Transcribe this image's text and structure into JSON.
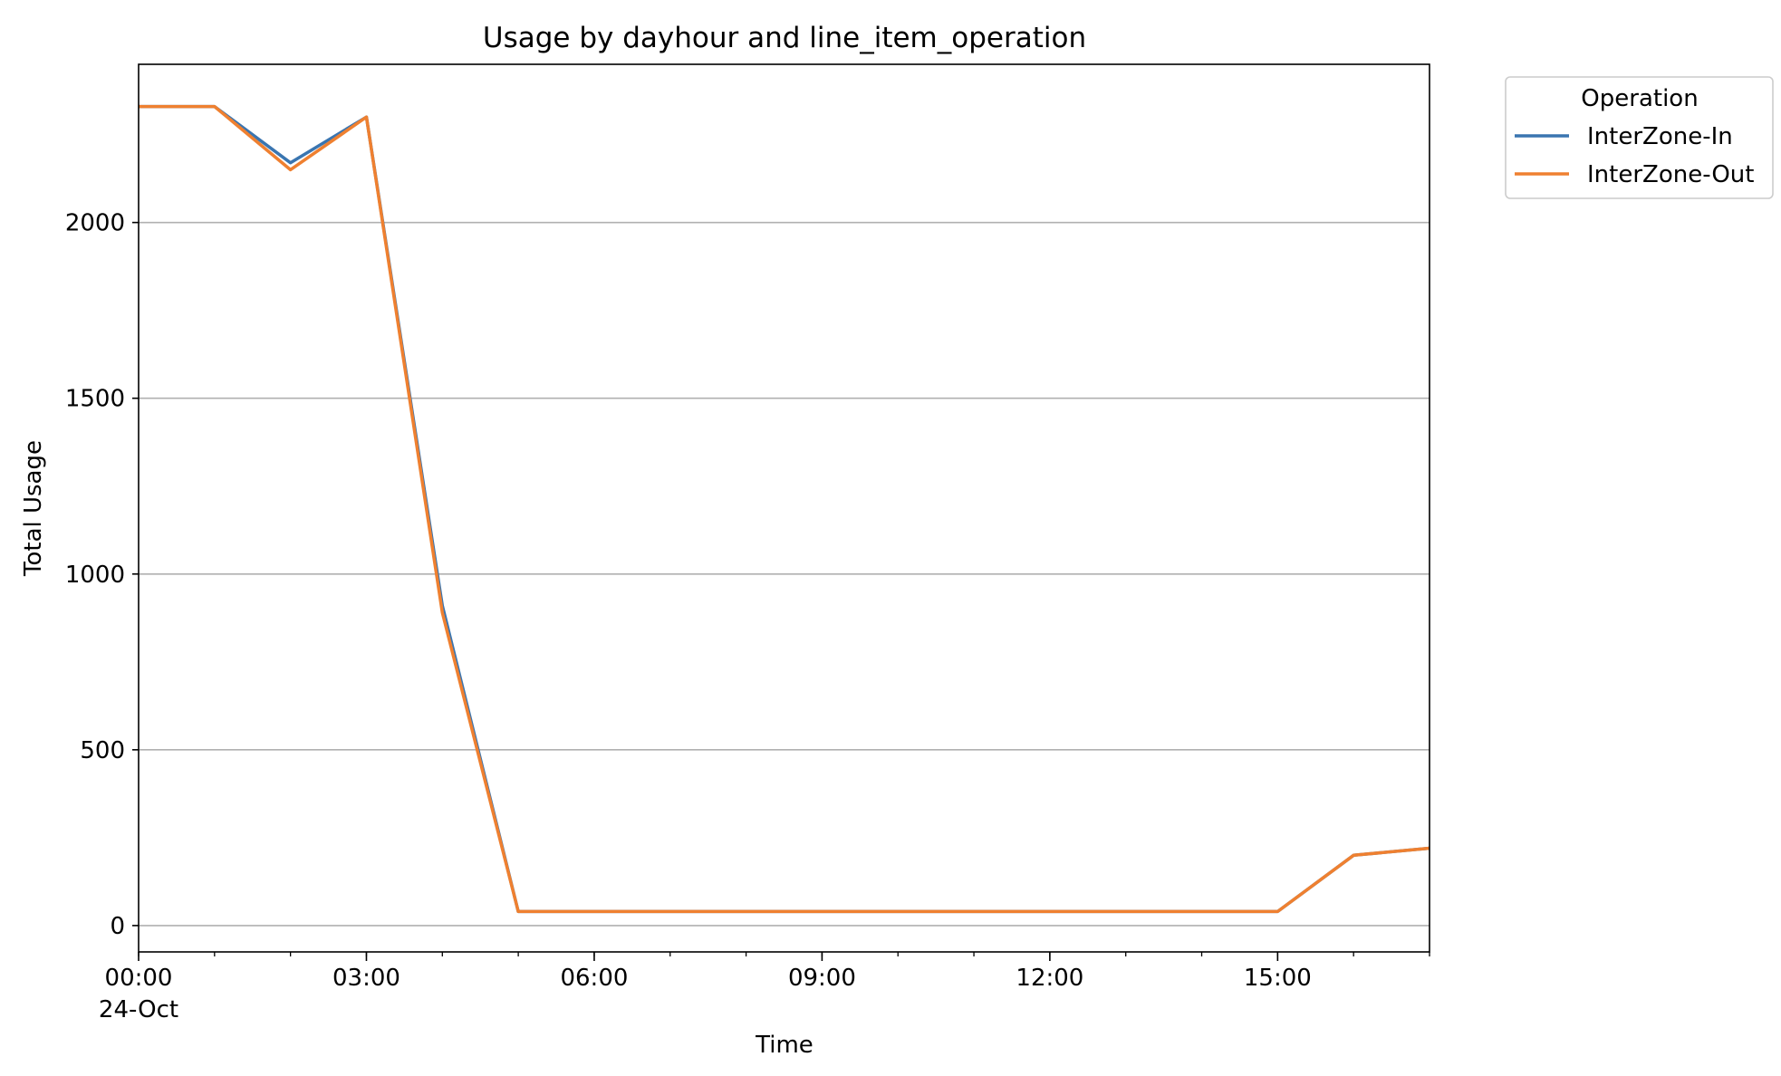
{
  "chart_data": {
    "type": "line",
    "title": "Usage by dayhour and line_item_operation",
    "xlabel": "Time",
    "ylabel": "Total Usage",
    "x": [
      "00:00",
      "01:00",
      "02:00",
      "03:00",
      "04:00",
      "05:00",
      "06:00",
      "07:00",
      "08:00",
      "09:00",
      "10:00",
      "11:00",
      "12:00",
      "13:00",
      "14:00",
      "15:00",
      "16:00",
      "17:00"
    ],
    "x_ticks": [
      {
        "hour": 0,
        "label": "00:00",
        "sublabel": "24-Oct"
      },
      {
        "hour": 3,
        "label": "03:00",
        "sublabel": ""
      },
      {
        "hour": 6,
        "label": "06:00",
        "sublabel": ""
      },
      {
        "hour": 9,
        "label": "09:00",
        "sublabel": ""
      },
      {
        "hour": 12,
        "label": "12:00",
        "sublabel": ""
      },
      {
        "hour": 15,
        "label": "15:00",
        "sublabel": ""
      }
    ],
    "xlim": [
      "00:00",
      "17:00"
    ],
    "ylim": [
      -75,
      2450
    ],
    "y_ticks": [
      0,
      500,
      1000,
      1500,
      2000
    ],
    "grid": "y-major",
    "legend": {
      "title": "Operation",
      "placement": "outside-upper-right"
    },
    "series": [
      {
        "name": "InterZone-In",
        "color": "#3a75b0",
        "values": [
          2330,
          2330,
          2170,
          2300,
          910,
          40,
          40,
          40,
          40,
          40,
          40,
          40,
          40,
          40,
          40,
          40,
          200,
          220
        ]
      },
      {
        "name": "InterZone-Out",
        "color": "#ef8030",
        "values": [
          2330,
          2330,
          2150,
          2300,
          890,
          40,
          40,
          40,
          40,
          40,
          40,
          40,
          40,
          40,
          40,
          40,
          200,
          220
        ]
      }
    ]
  }
}
